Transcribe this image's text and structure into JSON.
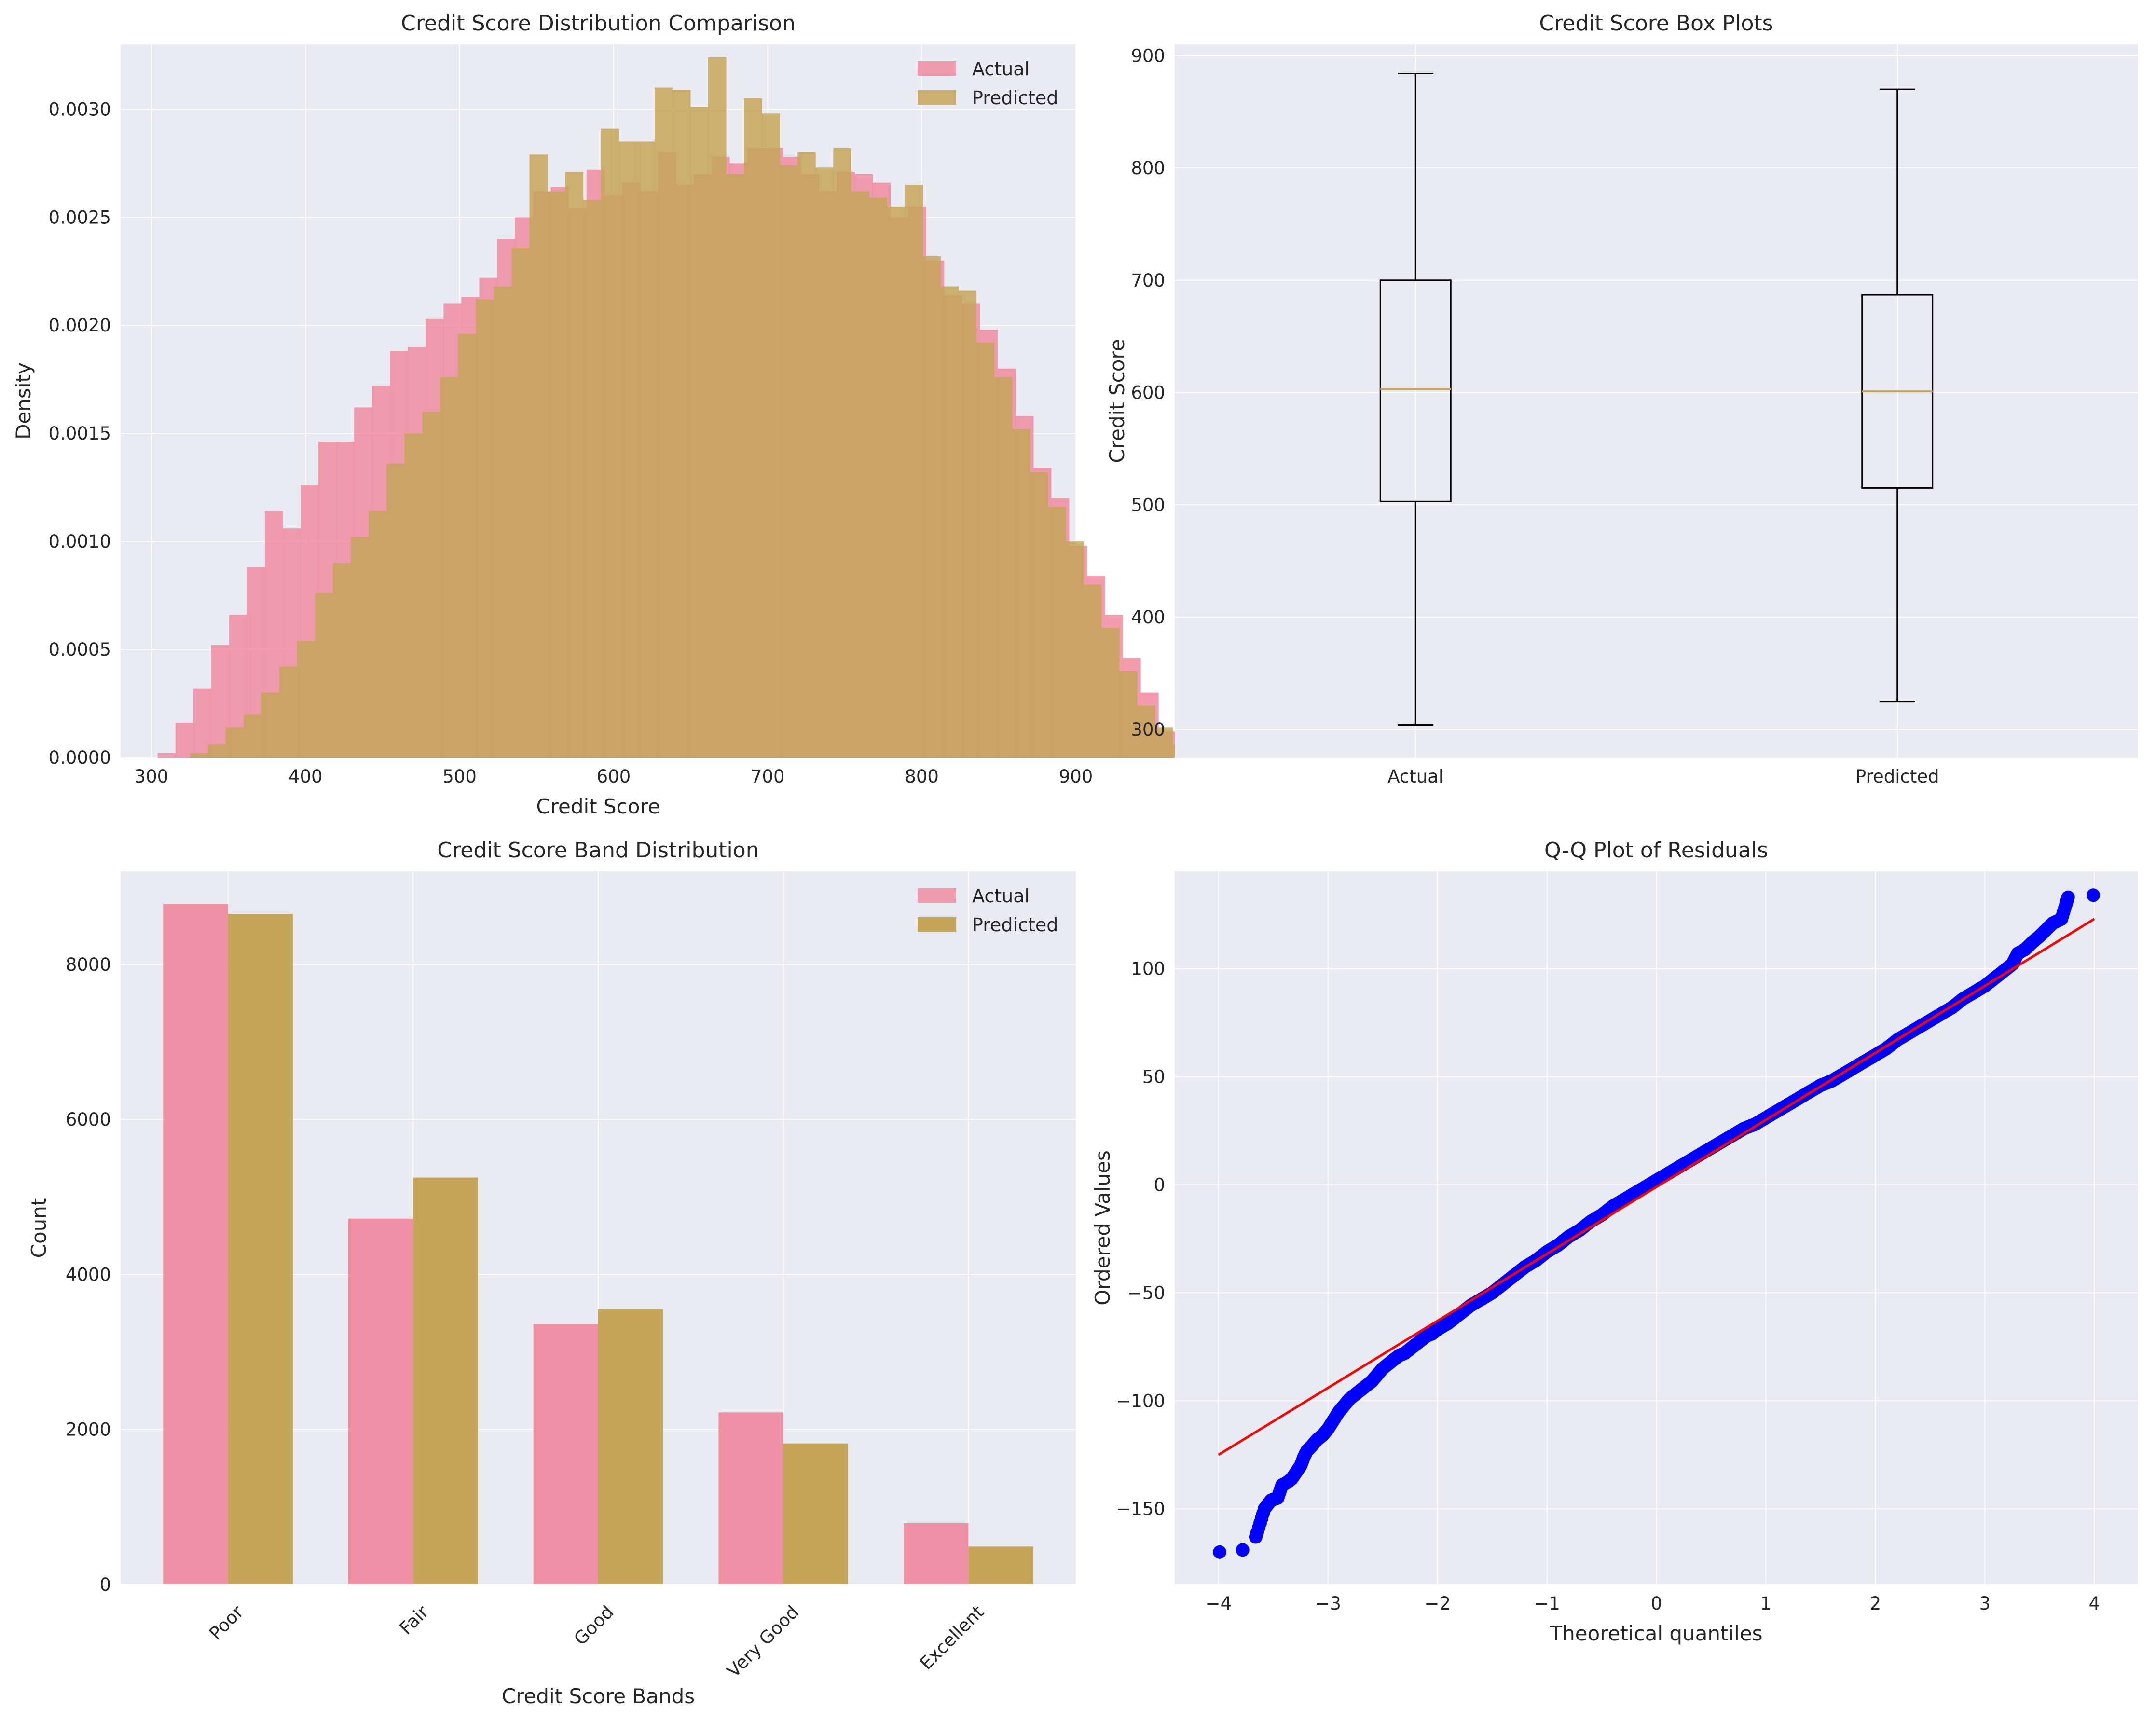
{
  "chart_data": [
    {
      "type": "histogram",
      "title": "Credit Score Distribution Comparison",
      "xlabel": "Credit Score",
      "ylabel": "Density",
      "xlim": [
        280,
        900
      ],
      "ylim": [
        0,
        0.0033
      ],
      "xticks": [
        300,
        400,
        500,
        600,
        700,
        800,
        900
      ],
      "yticks": [
        0.0,
        0.0005,
        0.001,
        0.0015,
        0.002,
        0.0025,
        0.003
      ],
      "yticklabels": [
        "0.0000",
        "0.0005",
        "0.0010",
        "0.0015",
        "0.0020",
        "0.0025",
        "0.0030"
      ],
      "legend": [
        "Actual",
        "Predicted"
      ],
      "legend_position": "top-right",
      "grid": true,
      "series": [
        {
          "name": "Actual",
          "color": "#f08ba0",
          "bin_start": 304,
          "bin_width": 11.6,
          "values": [
            2e-05,
            0.00016,
            0.00032,
            0.00052,
            0.00066,
            0.00088,
            0.00114,
            0.00106,
            0.00126,
            0.00146,
            0.00146,
            0.00162,
            0.00172,
            0.00188,
            0.0019,
            0.00203,
            0.0021,
            0.00213,
            0.00222,
            0.0024,
            0.0025,
            0.00262,
            0.00264,
            0.00254,
            0.00272,
            0.0026,
            0.00266,
            0.00262,
            0.0028,
            0.00265,
            0.0027,
            0.00278,
            0.00275,
            0.00282,
            0.00282,
            0.00278,
            0.0027,
            0.00262,
            0.00271,
            0.0027,
            0.00266,
            0.0025,
            0.00255,
            0.0023,
            0.00214,
            0.0021,
            0.00198,
            0.0018,
            0.00158,
            0.00134,
            0.0012,
            0.00098,
            0.00084,
            0.00066,
            0.00046,
            0.0003,
            0.00012,
            4e-05
          ]
        },
        {
          "name": "Predicted",
          "color": "#c4a55a",
          "bin_start": 325,
          "bin_width": 11.6,
          "values": [
            2e-05,
            6e-05,
            0.00014,
            0.0002,
            0.0003,
            0.00042,
            0.00054,
            0.00076,
            0.0009,
            0.00102,
            0.00114,
            0.00136,
            0.0015,
            0.0016,
            0.00176,
            0.00196,
            0.00212,
            0.00218,
            0.00236,
            0.00279,
            0.00262,
            0.00271,
            0.00258,
            0.00291,
            0.00285,
            0.00285,
            0.0031,
            0.00309,
            0.00301,
            0.00324,
            0.0027,
            0.00305,
            0.00298,
            0.00274,
            0.0028,
            0.00273,
            0.00282,
            0.00262,
            0.00259,
            0.00255,
            0.00265,
            0.00232,
            0.00218,
            0.00216,
            0.00192,
            0.00176,
            0.00152,
            0.00132,
            0.00116,
            0.001,
            0.0008,
            0.0006,
            0.0004,
            0.00024,
            0.00014,
            6e-05,
            2e-05
          ]
        }
      ]
    },
    {
      "type": "box",
      "title": "Credit Score Box Plots",
      "xlabel": "",
      "ylabel": "Credit Score",
      "ylim": [
        275,
        910
      ],
      "yticks": [
        300,
        400,
        500,
        600,
        700,
        800,
        900
      ],
      "categories": [
        "Actual",
        "Predicted"
      ],
      "grid": true,
      "boxes": [
        {
          "name": "Actual",
          "whisker_low": 304,
          "q1": 503,
          "median": 603,
          "q3": 700,
          "whisker_high": 884
        },
        {
          "name": "Predicted",
          "whisker_low": 325,
          "q1": 515,
          "median": 601,
          "q3": 687,
          "whisker_high": 870
        }
      ],
      "box_color": "#000000",
      "median_color": "#c4a55a"
    },
    {
      "type": "bar",
      "title": "Credit Score Band Distribution",
      "xlabel": "Credit Score Bands",
      "ylabel": "Count",
      "ylim": [
        0,
        9200
      ],
      "yticks": [
        0,
        2000,
        4000,
        6000,
        8000
      ],
      "categories": [
        "Poor",
        "Fair",
        "Good",
        "Very Good",
        "Excellent"
      ],
      "legend": [
        "Actual",
        "Predicted"
      ],
      "legend_position": "top-right",
      "grid": true,
      "series": [
        {
          "name": "Actual",
          "color": "#f08ba0",
          "values": [
            8780,
            4720,
            3360,
            2220,
            790
          ]
        },
        {
          "name": "Predicted",
          "color": "#c4a55a",
          "values": [
            8650,
            5250,
            3550,
            1820,
            490
          ]
        }
      ]
    },
    {
      "type": "scatter",
      "title": "Q-Q Plot of Residuals",
      "xlabel": "Theoretical quantiles",
      "ylabel": "Ordered Values",
      "xlim": [
        -4.4,
        4.4
      ],
      "ylim": [
        -185,
        145
      ],
      "xticks": [
        -4,
        -3,
        -2,
        -1,
        0,
        1,
        2,
        3,
        4
      ],
      "yticks": [
        -150,
        -100,
        -50,
        0,
        50,
        100
      ],
      "grid": true,
      "point_color": "#0000ff",
      "line_color": "#ff0000",
      "fit_line": [
        [
          -4.0,
          -125
        ],
        [
          4.0,
          123
        ]
      ],
      "points": [
        [
          -3.99,
          -170
        ],
        [
          -3.78,
          -169
        ],
        [
          -3.66,
          -163
        ],
        [
          -3.58,
          -150
        ],
        [
          -3.52,
          -146
        ],
        [
          -3.46,
          -145
        ],
        [
          -3.42,
          -139
        ],
        [
          -3.38,
          -138
        ],
        [
          -3.33,
          -136
        ],
        [
          -3.29,
          -133
        ],
        [
          -3.25,
          -130
        ],
        [
          -3.22,
          -126
        ],
        [
          -3.19,
          -123
        ],
        [
          -3.15,
          -121
        ],
        [
          -3.1,
          -118
        ],
        [
          -3.05,
          -116
        ],
        [
          -3.0,
          -113
        ],
        [
          -2.95,
          -109
        ],
        [
          -2.9,
          -105
        ],
        [
          -2.85,
          -102
        ],
        [
          -2.8,
          -99
        ],
        [
          -2.75,
          -97
        ],
        [
          -2.7,
          -95
        ],
        [
          -2.65,
          -93
        ],
        [
          -2.6,
          -91
        ],
        [
          -2.55,
          -88
        ],
        [
          -2.5,
          -85
        ],
        [
          -2.45,
          -83
        ],
        [
          -2.4,
          -81
        ],
        [
          -2.35,
          -79
        ],
        [
          -2.3,
          -78
        ],
        [
          -2.25,
          -76
        ],
        [
          -2.2,
          -74
        ],
        [
          -2.15,
          -72
        ],
        [
          -2.1,
          -70
        ],
        [
          -2.05,
          -69
        ],
        [
          -2.0,
          -67
        ],
        [
          -1.9,
          -64
        ],
        [
          -1.8,
          -60
        ],
        [
          -1.7,
          -56
        ],
        [
          -1.6,
          -53
        ],
        [
          -1.5,
          -50
        ],
        [
          -1.4,
          -46
        ],
        [
          -1.3,
          -42
        ],
        [
          -1.2,
          -38
        ],
        [
          -1.1,
          -35
        ],
        [
          -1.0,
          -31
        ],
        [
          -0.9,
          -28
        ],
        [
          -0.8,
          -24
        ],
        [
          -0.7,
          -21
        ],
        [
          -0.6,
          -17
        ],
        [
          -0.5,
          -14
        ],
        [
          -0.4,
          -10
        ],
        [
          -0.3,
          -7
        ],
        [
          -0.2,
          -4
        ],
        [
          -0.1,
          -1
        ],
        [
          0.0,
          2
        ],
        [
          0.1,
          5
        ],
        [
          0.2,
          8
        ],
        [
          0.3,
          11
        ],
        [
          0.4,
          14
        ],
        [
          0.5,
          17
        ],
        [
          0.6,
          20
        ],
        [
          0.7,
          23
        ],
        [
          0.8,
          26
        ],
        [
          0.9,
          28
        ],
        [
          1.0,
          31
        ],
        [
          1.1,
          34
        ],
        [
          1.2,
          37
        ],
        [
          1.3,
          40
        ],
        [
          1.4,
          43
        ],
        [
          1.5,
          46
        ],
        [
          1.6,
          48
        ],
        [
          1.7,
          51
        ],
        [
          1.8,
          54
        ],
        [
          1.9,
          57
        ],
        [
          2.0,
          60
        ],
        [
          2.1,
          63
        ],
        [
          2.2,
          67
        ],
        [
          2.3,
          70
        ],
        [
          2.4,
          73
        ],
        [
          2.5,
          76
        ],
        [
          2.6,
          79
        ],
        [
          2.7,
          82
        ],
        [
          2.8,
          86
        ],
        [
          2.9,
          89
        ],
        [
          3.0,
          92
        ],
        [
          3.05,
          94
        ],
        [
          3.1,
          96
        ],
        [
          3.15,
          98
        ],
        [
          3.2,
          100
        ],
        [
          3.25,
          102
        ],
        [
          3.3,
          107
        ],
        [
          3.37,
          109
        ],
        [
          3.43,
          112
        ],
        [
          3.5,
          115
        ],
        [
          3.56,
          118
        ],
        [
          3.62,
          121
        ],
        [
          3.7,
          123
        ],
        [
          3.76,
          133
        ],
        [
          3.99,
          134
        ]
      ]
    }
  ]
}
